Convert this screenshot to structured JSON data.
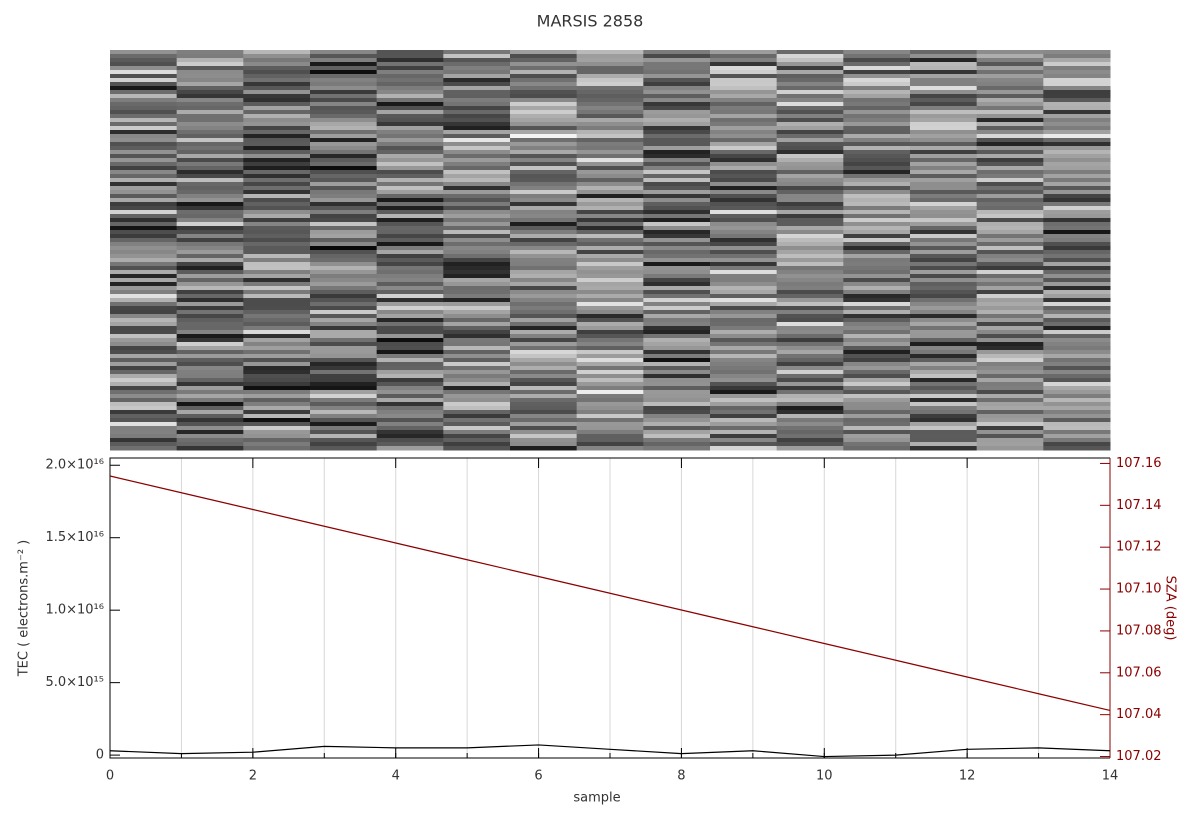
{
  "chart_data": {
    "type": "line",
    "title": "MARSIS 2858",
    "xlabel": "sample",
    "ylabel": "TEC ( electrons.m⁻² )",
    "y2label": "SZA (deg)",
    "x": [
      0,
      1,
      2,
      3,
      4,
      5,
      6,
      7,
      8,
      9,
      10,
      11,
      12,
      13,
      14
    ],
    "series": [
      {
        "name": "TEC",
        "color": "#000000",
        "values": [
          300000000000000.0,
          100000000000000.0,
          200000000000000.0,
          600000000000000.0,
          500000000000000.0,
          500000000000000.0,
          700000000000000.0,
          400000000000000.0,
          100000000000000.0,
          300000000000000.0,
          -100000000000000.0,
          0,
          400000000000000.0,
          500000000000000.0,
          300000000000000.0
        ]
      },
      {
        "name": "SZA",
        "color": "#8b0000",
        "axis": "y2",
        "values": [
          107.154,
          107.146,
          107.138,
          107.13,
          107.122,
          107.114,
          107.106,
          107.098,
          107.09,
          107.082,
          107.074,
          107.066,
          107.058,
          107.05,
          107.042
        ]
      }
    ],
    "xlim": [
      0,
      14
    ],
    "xticks": [
      0,
      2,
      4,
      6,
      8,
      10,
      12,
      14
    ],
    "ylim": [
      -200000000000000.0,
      2.05e+16
    ],
    "yticks": [
      0,
      {
        "value": 5000000000000000.0,
        "label": "5.0×10¹⁵"
      },
      {
        "value": 1e+16,
        "label": "1.0×10¹⁶"
      },
      {
        "value": 1.5e+16,
        "label": "1.5×10¹⁶"
      },
      {
        "value": 2e+16,
        "label": "2.0×10¹⁶"
      }
    ],
    "y2lim": [
      107.0193,
      107.1626
    ],
    "y2ticks": [
      107.02,
      107.04,
      107.06,
      107.08,
      {
        "value": 107.1,
        "label": "107.10"
      },
      107.12,
      107.14,
      107.16
    ],
    "y2color": "#8b0000",
    "grid": true
  }
}
